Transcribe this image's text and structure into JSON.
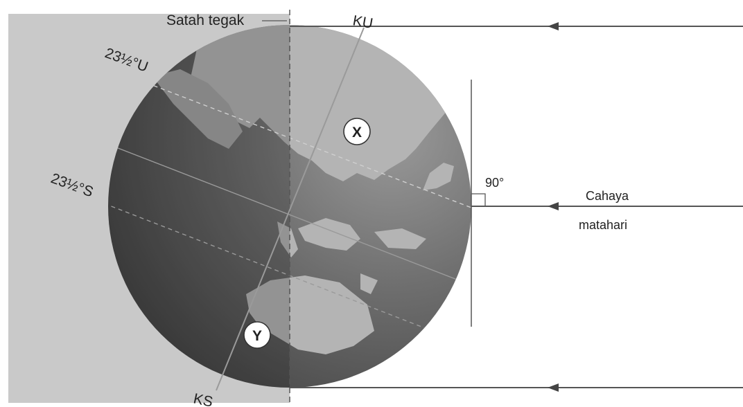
{
  "labels": {
    "vertical_plane": "Satah tegak",
    "north_pole": "KU",
    "south_pole": "KS",
    "tropic_north": "23½°U",
    "tropic_south": "23½°S",
    "right_angle": "90°",
    "sunlight_line1": "Cahaya",
    "sunlight_line2": "matahari"
  },
  "markers": {
    "point_x": "X",
    "point_y": "Y"
  },
  "colors": {
    "shade_panel": "#c9c9c9",
    "ocean_dark": "#555555",
    "ocean_light": "#8c8c8c",
    "land_light": "#b4b4b4",
    "line": "#555555"
  }
}
